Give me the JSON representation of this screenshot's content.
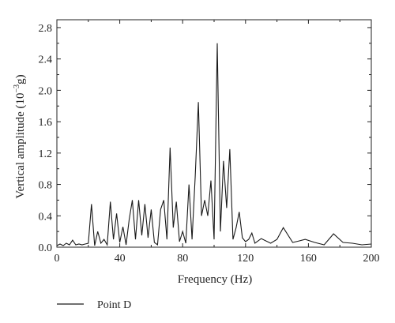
{
  "chart_data": {
    "type": "line",
    "xlabel": "Frequency (Hz)",
    "ylabel_main": "Vertical amplitude (10",
    "ylabel_sup": "−3",
    "ylabel_tail": "g)",
    "xlim": [
      0,
      200
    ],
    "ylim": [
      0,
      2.9
    ],
    "xticks": [
      0,
      40,
      80,
      120,
      160,
      200
    ],
    "yticks": [
      0.0,
      0.4,
      0.8,
      1.2,
      1.6,
      2.0,
      2.4,
      2.8
    ],
    "ytick_labels": [
      "0.0",
      "0.4",
      "0.8",
      "1.2",
      "1.6",
      "2.0",
      "2.4",
      "2.8"
    ],
    "grid": false,
    "legend_position": "bottom-left",
    "series": [
      {
        "name": "Point D",
        "color": "#1a1a1a",
        "x": [
          0,
          2,
          4,
          6,
          8,
          10,
          12,
          14,
          16,
          18,
          20,
          22,
          24,
          26,
          28,
          30,
          32,
          34,
          36,
          38,
          40,
          42,
          44,
          46,
          48,
          50,
          52,
          54,
          56,
          58,
          60,
          62,
          64,
          66,
          68,
          70,
          72,
          74,
          76,
          78,
          80,
          82,
          84,
          86,
          88,
          90,
          92,
          94,
          96,
          98,
          100,
          102,
          104,
          106,
          108,
          110,
          112,
          114,
          116,
          118,
          120,
          122,
          124,
          126,
          130,
          136,
          140,
          144,
          150,
          154,
          158,
          164,
          170,
          176,
          182,
          188,
          194,
          200
        ],
        "y": [
          0.02,
          0.04,
          0.02,
          0.05,
          0.03,
          0.09,
          0.03,
          0.04,
          0.03,
          0.04,
          0.05,
          0.55,
          0.02,
          0.2,
          0.05,
          0.1,
          0.03,
          0.58,
          0.1,
          0.43,
          0.06,
          0.26,
          0.03,
          0.35,
          0.6,
          0.1,
          0.6,
          0.15,
          0.55,
          0.12,
          0.48,
          0.06,
          0.03,
          0.48,
          0.6,
          0.1,
          1.27,
          0.25,
          0.58,
          0.07,
          0.2,
          0.05,
          0.8,
          0.1,
          0.9,
          1.85,
          0.4,
          0.6,
          0.4,
          0.85,
          0.1,
          2.6,
          0.2,
          1.1,
          0.5,
          1.25,
          0.1,
          0.25,
          0.45,
          0.12,
          0.07,
          0.1,
          0.18,
          0.05,
          0.11,
          0.05,
          0.1,
          0.25,
          0.06,
          0.08,
          0.1,
          0.06,
          0.03,
          0.17,
          0.06,
          0.05,
          0.03,
          0.04
        ]
      }
    ]
  }
}
